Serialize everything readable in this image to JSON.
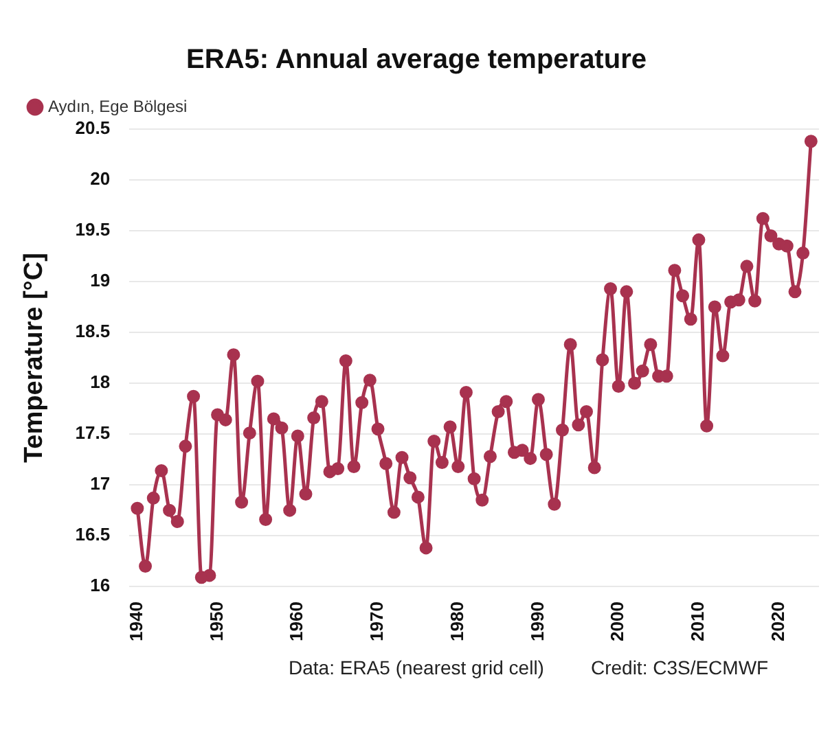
{
  "chart_data": {
    "type": "line",
    "title": "ERA5: Annual average temperature",
    "ylabel": "Temperature [°C]",
    "x": [
      1940,
      1941,
      1942,
      1943,
      1944,
      1945,
      1946,
      1947,
      1948,
      1949,
      1950,
      1951,
      1952,
      1953,
      1954,
      1955,
      1956,
      1957,
      1958,
      1959,
      1960,
      1961,
      1962,
      1963,
      1964,
      1965,
      1966,
      1967,
      1968,
      1969,
      1970,
      1971,
      1972,
      1973,
      1974,
      1975,
      1976,
      1977,
      1978,
      1979,
      1980,
      1981,
      1982,
      1983,
      1984,
      1985,
      1986,
      1987,
      1988,
      1989,
      1990,
      1991,
      1992,
      1993,
      1994,
      1995,
      1996,
      1997,
      1998,
      1999,
      2000,
      2001,
      2002,
      2003,
      2004,
      2005,
      2006,
      2007,
      2008,
      2009,
      2010,
      2011,
      2012,
      2013,
      2014,
      2015,
      2016,
      2017,
      2018,
      2019,
      2020,
      2021,
      2022,
      2023,
      2024
    ],
    "series": [
      {
        "name": "Aydın, Ege Bölgesi",
        "color": "#a8324f",
        "values": [
          16.77,
          16.2,
          16.87,
          17.14,
          16.75,
          16.64,
          17.38,
          17.87,
          16.09,
          16.11,
          17.69,
          17.64,
          18.28,
          16.83,
          17.51,
          18.02,
          16.66,
          17.65,
          17.56,
          16.75,
          17.48,
          16.91,
          17.66,
          17.82,
          17.13,
          17.16,
          18.22,
          17.18,
          17.81,
          18.03,
          17.55,
          17.21,
          16.73,
          17.27,
          17.07,
          16.88,
          16.38,
          17.43,
          17.22,
          17.57,
          17.18,
          17.91,
          17.06,
          16.85,
          17.28,
          17.72,
          17.82,
          17.32,
          17.34,
          17.26,
          17.84,
          17.3,
          16.81,
          17.54,
          18.38,
          17.59,
          17.72,
          17.17,
          18.23,
          18.93,
          17.97,
          18.9,
          18.0,
          18.12,
          18.38,
          18.07,
          18.07,
          19.11,
          18.86,
          18.63,
          19.41,
          17.58,
          18.75,
          18.27,
          18.8,
          18.82,
          19.15,
          18.81,
          19.62,
          19.45,
          19.37,
          19.35,
          18.9,
          19.28,
          20.38
        ]
      }
    ],
    "xlim": [
      1939,
      2025
    ],
    "xticks": [
      1940,
      1950,
      1960,
      1970,
      1980,
      1990,
      2000,
      2010,
      2020
    ],
    "ylim": [
      16,
      20.5
    ],
    "yticks": [
      16,
      16.5,
      17,
      17.5,
      18,
      18.5,
      19,
      19.5,
      20,
      20.5
    ],
    "grid": "y",
    "legend": "top left",
    "marker": "circle",
    "line_style": "solid",
    "annotations": [
      "Data: ERA5 (nearest grid cell)",
      "Credit: C3S/ECMWF"
    ]
  }
}
